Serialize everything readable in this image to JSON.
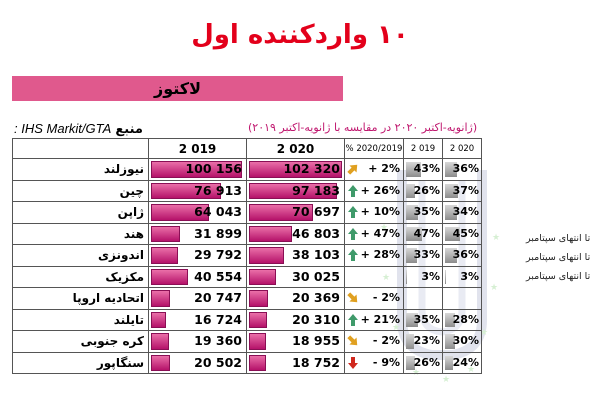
{
  "title": "۱۰ واردکننده اول",
  "product": "لاکتوز",
  "source": {
    "label": "منبع",
    "text": ": IHS Markit/GTA"
  },
  "period": "(ژانویه-اکتبر ۲۰۲۰ در مقایسه با ژانویه-اکتبر ۲۰۱۹)",
  "side_notes": [
    "تا انتهای سپتامبر",
    "تا انتهای سپتامبر",
    "تا انتهای سپتامبر"
  ],
  "headers": {
    "y2019": "2 019",
    "y2020": "2 020",
    "change": "% 2020/2019",
    "sh2019": "2 019",
    "sh2020": "2 020"
  },
  "rows": [
    {
      "country": "نیوزلند",
      "v2019": "100 156",
      "v2020": "102 320",
      "change": "+ 2%",
      "arrow": "up-right",
      "sh2019": "43%",
      "sh2020": "36%",
      "f2019": 0.43,
      "f2020": 0.36
    },
    {
      "country": "چین",
      "v2019": "76 913",
      "v2020": "97 183",
      "change": "+ 26%",
      "arrow": "up",
      "sh2019": "26%",
      "sh2020": "37%",
      "f2019": 0.26,
      "f2020": 0.37
    },
    {
      "country": "ژاپن",
      "v2019": "64 043",
      "v2020": "70 697",
      "change": "+ 10%",
      "arrow": "up",
      "sh2019": "35%",
      "sh2020": "34%",
      "f2019": 0.35,
      "f2020": 0.34
    },
    {
      "country": "هند",
      "v2019": "31 899",
      "v2020": "46 803",
      "change": "+ 47%",
      "arrow": "up",
      "sh2019": "47%",
      "sh2020": "45%",
      "f2019": 0.47,
      "f2020": 0.45
    },
    {
      "country": "اندونزی",
      "v2019": "29 792",
      "v2020": "38 103",
      "change": "+ 28%",
      "arrow": "up",
      "sh2019": "33%",
      "sh2020": "36%",
      "f2019": 0.33,
      "f2020": 0.36
    },
    {
      "country": "مکزیک",
      "v2019": "40 554",
      "v2020": "30 025",
      "change": "",
      "arrow": "",
      "sh2019": "3%",
      "sh2020": "3%",
      "f2019": 0.03,
      "f2020": 0.03
    },
    {
      "country": "اتحادیه اروپا",
      "v2019": "20 747",
      "v2020": "20 369",
      "change": "- 2%",
      "arrow": "down-right",
      "sh2019": "",
      "sh2020": "",
      "f2019": 0,
      "f2020": 0
    },
    {
      "country": "تایلند",
      "v2019": "16 724",
      "v2020": "20 310",
      "change": "+ 21%",
      "arrow": "up",
      "sh2019": "35%",
      "sh2020": "28%",
      "f2019": 0.35,
      "f2020": 0.28
    },
    {
      "country": "کره جنوبی",
      "v2019": "19 360",
      "v2020": "18 955",
      "change": "- 2%",
      "arrow": "down-right",
      "sh2019": "23%",
      "sh2020": "30%",
      "f2019": 0.23,
      "f2020": 0.3
    },
    {
      "country": "سنگاپور",
      "v2019": "20 502",
      "v2020": "18 752",
      "change": "- 9%",
      "arrow": "down",
      "sh2019": "26%",
      "sh2020": "24%",
      "f2019": 0.26,
      "f2020": 0.24
    }
  ],
  "colors": {
    "title": "#e3001b",
    "product_band": "#e0598d",
    "bar": "#c81a78",
    "arrow_up": "#3f9a6a",
    "arrow_flat": "#e0a020",
    "arrow_down": "#d0281e"
  }
}
